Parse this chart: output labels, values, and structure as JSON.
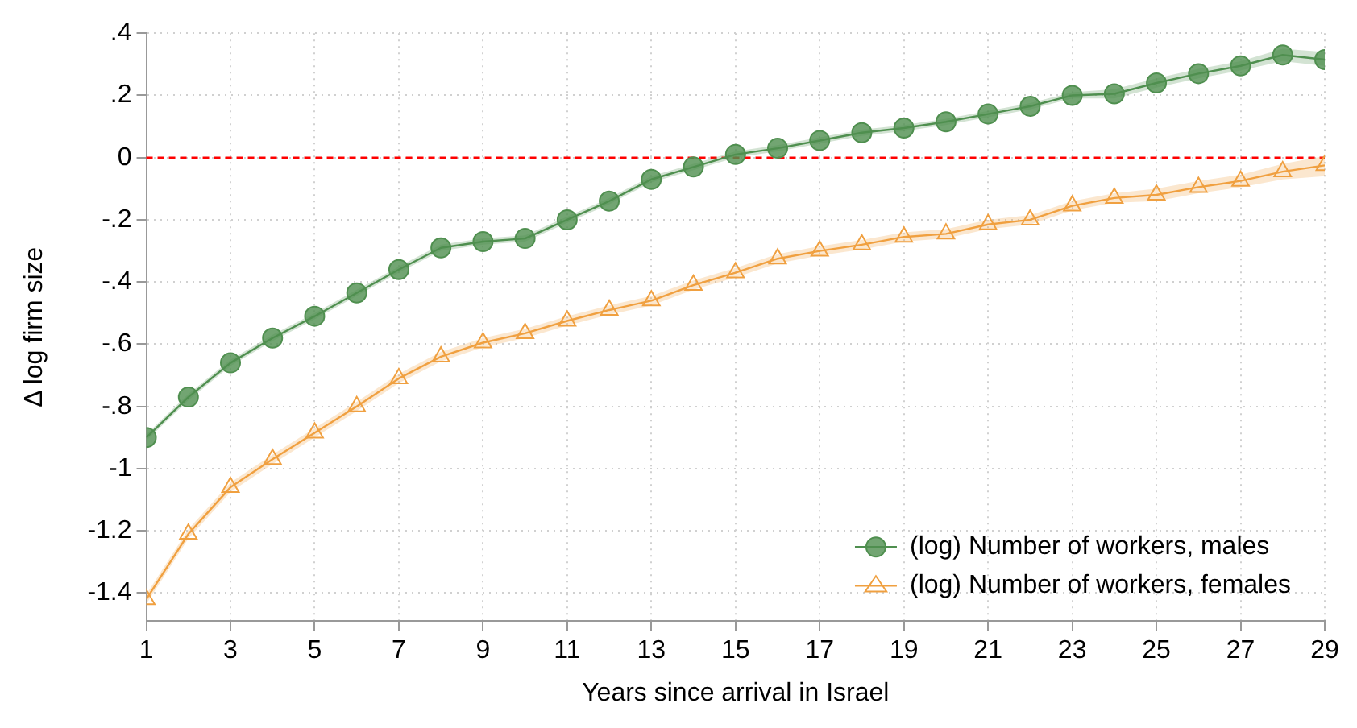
{
  "chart_data": {
    "type": "line",
    "xlabel": "Years since arrival in Israel",
    "ylabel": "Δ log firm size",
    "x": [
      1,
      2,
      3,
      4,
      5,
      6,
      7,
      8,
      9,
      10,
      11,
      12,
      13,
      14,
      15,
      16,
      17,
      18,
      19,
      20,
      21,
      22,
      23,
      24,
      25,
      26,
      27,
      28,
      29
    ],
    "xlim": [
      1,
      29
    ],
    "xticks": [
      1,
      3,
      5,
      7,
      9,
      11,
      13,
      15,
      17,
      19,
      21,
      23,
      25,
      27,
      29
    ],
    "ylim": [
      -1.49,
      0.4
    ],
    "yticks": [
      {
        "value": 0.4,
        "label": ".4"
      },
      {
        "value": 0.2,
        "label": ".2"
      },
      0,
      {
        "value": -0.2,
        "label": "-.2"
      },
      {
        "value": -0.4,
        "label": "-.4"
      },
      {
        "value": -0.6,
        "label": "-.6"
      },
      {
        "value": -0.8,
        "label": "-.8"
      },
      -1,
      {
        "value": -1.2,
        "label": "-1.2"
      },
      {
        "value": -1.4,
        "label": "-1.4"
      }
    ],
    "grid": true,
    "legend": "bottom right",
    "line_style": "solid",
    "ref_lines": [
      {
        "axis": "y",
        "value": 0,
        "color": "#ff0000",
        "line_style": "dashed"
      }
    ],
    "series": [
      {
        "name": "(log) Number of workers, males",
        "color": "#4f8f4f",
        "marker": "circle",
        "values": [
          -0.9,
          -0.77,
          -0.66,
          -0.58,
          -0.51,
          -0.435,
          -0.36,
          -0.29,
          -0.27,
          -0.26,
          -0.2,
          -0.14,
          -0.07,
          -0.03,
          0.01,
          0.03,
          0.055,
          0.08,
          0.095,
          0.115,
          0.14,
          0.165,
          0.2,
          0.205,
          0.24,
          0.27,
          0.295,
          0.33,
          0.315
        ],
        "lower": [
          -0.91,
          -0.78,
          -0.67,
          -0.59,
          -0.52,
          -0.445,
          -0.37,
          -0.3,
          -0.28,
          -0.27,
          -0.21,
          -0.15,
          -0.08,
          -0.04,
          0,
          0.02,
          0.045,
          0.07,
          0.085,
          0.105,
          0.13,
          0.155,
          0.19,
          0.19,
          0.225,
          0.255,
          0.28,
          0.31,
          0.295
        ],
        "upper": [
          -0.89,
          -0.76,
          -0.65,
          -0.57,
          -0.5,
          -0.425,
          -0.35,
          -0.28,
          -0.26,
          -0.25,
          -0.19,
          -0.13,
          -0.06,
          -0.02,
          0.02,
          0.04,
          0.065,
          0.09,
          0.105,
          0.125,
          0.15,
          0.175,
          0.21,
          0.22,
          0.255,
          0.285,
          0.31,
          0.35,
          0.34
        ]
      },
      {
        "name": "(log) Number of workers, females",
        "color": "#f0a040",
        "marker": "triangle",
        "values": [
          -1.42,
          -1.21,
          -1.06,
          -0.97,
          -0.885,
          -0.8,
          -0.71,
          -0.64,
          -0.595,
          -0.565,
          -0.525,
          -0.49,
          -0.46,
          -0.41,
          -0.37,
          -0.325,
          -0.3,
          -0.28,
          -0.255,
          -0.245,
          -0.215,
          -0.2,
          -0.155,
          -0.13,
          -0.12,
          -0.095,
          -0.075,
          -0.045,
          -0.025
        ],
        "lower": [
          -1.435,
          -1.225,
          -1.075,
          -0.985,
          -0.9,
          -0.815,
          -0.725,
          -0.655,
          -0.61,
          -0.58,
          -0.54,
          -0.505,
          -0.475,
          -0.425,
          -0.385,
          -0.34,
          -0.315,
          -0.295,
          -0.27,
          -0.26,
          -0.23,
          -0.215,
          -0.17,
          -0.145,
          -0.14,
          -0.115,
          -0.095,
          -0.07,
          -0.06
        ],
        "upper": [
          -1.405,
          -1.195,
          -1.045,
          -0.955,
          -0.87,
          -0.785,
          -0.695,
          -0.625,
          -0.58,
          -0.55,
          -0.51,
          -0.475,
          -0.445,
          -0.395,
          -0.355,
          -0.31,
          -0.285,
          -0.265,
          -0.24,
          -0.23,
          -0.2,
          -0.185,
          -0.14,
          -0.115,
          -0.1,
          -0.075,
          -0.055,
          -0.02,
          0.005
        ]
      }
    ]
  }
}
